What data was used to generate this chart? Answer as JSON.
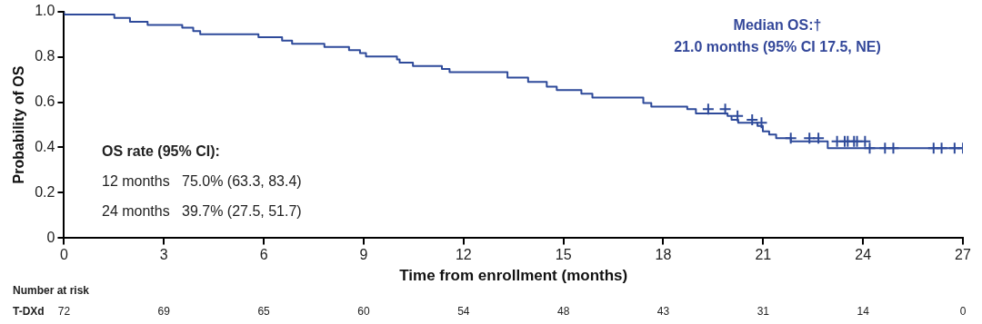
{
  "chart_data": {
    "type": "step",
    "xlabel": "Time from enrollment (months)",
    "ylabel": "Probability of OS",
    "xlim": [
      0,
      27
    ],
    "xticks": [
      0,
      3,
      6,
      9,
      12,
      15,
      18,
      21,
      24,
      27
    ],
    "ylim": [
      0,
      1
    ],
    "yticks": [
      {
        "value": 0,
        "label": "0"
      },
      {
        "value": 0.2,
        "label": "0.2"
      },
      {
        "value": 0.4,
        "label": "0.4"
      },
      {
        "value": 0.6,
        "label": "0.6"
      },
      {
        "value": 0.8,
        "label": "0.8"
      },
      {
        "value": 1,
        "label": "1.0"
      }
    ],
    "grid": false,
    "legend": false,
    "series": [
      {
        "color": "#2e4a9a",
        "marker": "none",
        "line_style": "solid",
        "x": [
          0,
          1.51,
          1.98,
          2.51,
          3.55,
          3.88,
          4.09,
          5.84,
          6.55,
          6.85,
          7.82,
          8.56,
          8.89,
          9.07,
          10.0,
          10.08,
          10.48,
          11.35,
          11.58,
          13.32,
          13.94,
          14.5,
          14.8,
          15.54,
          15.87,
          17.4,
          17.64,
          18.72,
          18.98,
          19.93,
          20.05,
          20.25,
          20.83,
          20.99,
          21.18,
          21.39,
          21.83,
          22.94,
          24.15,
          27
        ],
        "values": [
          1,
          0.986,
          0.971,
          0.954,
          0.94,
          0.928,
          0.913,
          0.899,
          0.886,
          0.871,
          0.857,
          0.843,
          0.829,
          0.816,
          0.801,
          0.788,
          0.774,
          0.759,
          0.746,
          0.732,
          0.708,
          0.689,
          0.668,
          0.653,
          0.637,
          0.62,
          0.596,
          0.58,
          0.569,
          0.55,
          0.539,
          0.522,
          0.509,
          0.495,
          0.471,
          0.457,
          0.441,
          0.427,
          0.397,
          0.397
        ]
      },
      {
        "type": "scatter",
        "color": "#2e4a9a",
        "marker": "cross",
        "x": [
          19.35,
          19.86,
          20.23,
          20.67,
          20.95,
          21.83,
          22.39,
          22.66,
          23.22,
          23.45,
          23.54,
          23.73,
          23.82,
          24.06,
          24.2,
          24.66,
          24.91,
          26.12,
          26.36,
          26.75,
          27.0
        ],
        "values": [
          0.569,
          0.569,
          0.539,
          0.522,
          0.509,
          0.441,
          0.441,
          0.441,
          0.427,
          0.427,
          0.427,
          0.427,
          0.427,
          0.427,
          0.397,
          0.397,
          0.397,
          0.397,
          0.397,
          0.397,
          0.397
        ]
      }
    ],
    "annotations": [
      "Median OS:†",
      "21.0 months (95% CI 17.5, NE)",
      "OS rate (95% CI):",
      "12 months   75.0% (63.3, 83.4)",
      "24 months   39.7% (27.5, 51.7)",
      "Number at risk",
      "T-DXd",
      "72",
      "69",
      "65",
      "60",
      "54",
      "48",
      "43",
      "31",
      "14",
      "0"
    ]
  }
}
